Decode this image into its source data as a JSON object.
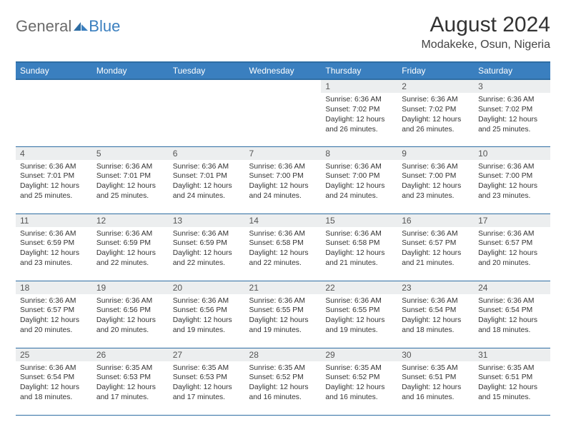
{
  "logo": {
    "text1": "General",
    "text2": "Blue"
  },
  "title": "August 2024",
  "location": "Modakeke, Osun, Nigeria",
  "colors": {
    "header_bg": "#3a7fbf",
    "header_border": "#2e6da3",
    "daynum_bg": "#eceeef",
    "logo_gray": "#6b6b6b",
    "logo_blue": "#3a7fbf"
  },
  "weekdays": [
    "Sunday",
    "Monday",
    "Tuesday",
    "Wednesday",
    "Thursday",
    "Friday",
    "Saturday"
  ],
  "weeks": [
    [
      {
        "day": "",
        "sunrise": "",
        "sunset": "",
        "daylight": ""
      },
      {
        "day": "",
        "sunrise": "",
        "sunset": "",
        "daylight": ""
      },
      {
        "day": "",
        "sunrise": "",
        "sunset": "",
        "daylight": ""
      },
      {
        "day": "",
        "sunrise": "",
        "sunset": "",
        "daylight": ""
      },
      {
        "day": "1",
        "sunrise": "Sunrise: 6:36 AM",
        "sunset": "Sunset: 7:02 PM",
        "daylight": "Daylight: 12 hours and 26 minutes."
      },
      {
        "day": "2",
        "sunrise": "Sunrise: 6:36 AM",
        "sunset": "Sunset: 7:02 PM",
        "daylight": "Daylight: 12 hours and 26 minutes."
      },
      {
        "day": "3",
        "sunrise": "Sunrise: 6:36 AM",
        "sunset": "Sunset: 7:02 PM",
        "daylight": "Daylight: 12 hours and 25 minutes."
      }
    ],
    [
      {
        "day": "4",
        "sunrise": "Sunrise: 6:36 AM",
        "sunset": "Sunset: 7:01 PM",
        "daylight": "Daylight: 12 hours and 25 minutes."
      },
      {
        "day": "5",
        "sunrise": "Sunrise: 6:36 AM",
        "sunset": "Sunset: 7:01 PM",
        "daylight": "Daylight: 12 hours and 25 minutes."
      },
      {
        "day": "6",
        "sunrise": "Sunrise: 6:36 AM",
        "sunset": "Sunset: 7:01 PM",
        "daylight": "Daylight: 12 hours and 24 minutes."
      },
      {
        "day": "7",
        "sunrise": "Sunrise: 6:36 AM",
        "sunset": "Sunset: 7:00 PM",
        "daylight": "Daylight: 12 hours and 24 minutes."
      },
      {
        "day": "8",
        "sunrise": "Sunrise: 6:36 AM",
        "sunset": "Sunset: 7:00 PM",
        "daylight": "Daylight: 12 hours and 24 minutes."
      },
      {
        "day": "9",
        "sunrise": "Sunrise: 6:36 AM",
        "sunset": "Sunset: 7:00 PM",
        "daylight": "Daylight: 12 hours and 23 minutes."
      },
      {
        "day": "10",
        "sunrise": "Sunrise: 6:36 AM",
        "sunset": "Sunset: 7:00 PM",
        "daylight": "Daylight: 12 hours and 23 minutes."
      }
    ],
    [
      {
        "day": "11",
        "sunrise": "Sunrise: 6:36 AM",
        "sunset": "Sunset: 6:59 PM",
        "daylight": "Daylight: 12 hours and 23 minutes."
      },
      {
        "day": "12",
        "sunrise": "Sunrise: 6:36 AM",
        "sunset": "Sunset: 6:59 PM",
        "daylight": "Daylight: 12 hours and 22 minutes."
      },
      {
        "day": "13",
        "sunrise": "Sunrise: 6:36 AM",
        "sunset": "Sunset: 6:59 PM",
        "daylight": "Daylight: 12 hours and 22 minutes."
      },
      {
        "day": "14",
        "sunrise": "Sunrise: 6:36 AM",
        "sunset": "Sunset: 6:58 PM",
        "daylight": "Daylight: 12 hours and 22 minutes."
      },
      {
        "day": "15",
        "sunrise": "Sunrise: 6:36 AM",
        "sunset": "Sunset: 6:58 PM",
        "daylight": "Daylight: 12 hours and 21 minutes."
      },
      {
        "day": "16",
        "sunrise": "Sunrise: 6:36 AM",
        "sunset": "Sunset: 6:57 PM",
        "daylight": "Daylight: 12 hours and 21 minutes."
      },
      {
        "day": "17",
        "sunrise": "Sunrise: 6:36 AM",
        "sunset": "Sunset: 6:57 PM",
        "daylight": "Daylight: 12 hours and 20 minutes."
      }
    ],
    [
      {
        "day": "18",
        "sunrise": "Sunrise: 6:36 AM",
        "sunset": "Sunset: 6:57 PM",
        "daylight": "Daylight: 12 hours and 20 minutes."
      },
      {
        "day": "19",
        "sunrise": "Sunrise: 6:36 AM",
        "sunset": "Sunset: 6:56 PM",
        "daylight": "Daylight: 12 hours and 20 minutes."
      },
      {
        "day": "20",
        "sunrise": "Sunrise: 6:36 AM",
        "sunset": "Sunset: 6:56 PM",
        "daylight": "Daylight: 12 hours and 19 minutes."
      },
      {
        "day": "21",
        "sunrise": "Sunrise: 6:36 AM",
        "sunset": "Sunset: 6:55 PM",
        "daylight": "Daylight: 12 hours and 19 minutes."
      },
      {
        "day": "22",
        "sunrise": "Sunrise: 6:36 AM",
        "sunset": "Sunset: 6:55 PM",
        "daylight": "Daylight: 12 hours and 19 minutes."
      },
      {
        "day": "23",
        "sunrise": "Sunrise: 6:36 AM",
        "sunset": "Sunset: 6:54 PM",
        "daylight": "Daylight: 12 hours and 18 minutes."
      },
      {
        "day": "24",
        "sunrise": "Sunrise: 6:36 AM",
        "sunset": "Sunset: 6:54 PM",
        "daylight": "Daylight: 12 hours and 18 minutes."
      }
    ],
    [
      {
        "day": "25",
        "sunrise": "Sunrise: 6:36 AM",
        "sunset": "Sunset: 6:54 PM",
        "daylight": "Daylight: 12 hours and 18 minutes."
      },
      {
        "day": "26",
        "sunrise": "Sunrise: 6:35 AM",
        "sunset": "Sunset: 6:53 PM",
        "daylight": "Daylight: 12 hours and 17 minutes."
      },
      {
        "day": "27",
        "sunrise": "Sunrise: 6:35 AM",
        "sunset": "Sunset: 6:53 PM",
        "daylight": "Daylight: 12 hours and 17 minutes."
      },
      {
        "day": "28",
        "sunrise": "Sunrise: 6:35 AM",
        "sunset": "Sunset: 6:52 PM",
        "daylight": "Daylight: 12 hours and 16 minutes."
      },
      {
        "day": "29",
        "sunrise": "Sunrise: 6:35 AM",
        "sunset": "Sunset: 6:52 PM",
        "daylight": "Daylight: 12 hours and 16 minutes."
      },
      {
        "day": "30",
        "sunrise": "Sunrise: 6:35 AM",
        "sunset": "Sunset: 6:51 PM",
        "daylight": "Daylight: 12 hours and 16 minutes."
      },
      {
        "day": "31",
        "sunrise": "Sunrise: 6:35 AM",
        "sunset": "Sunset: 6:51 PM",
        "daylight": "Daylight: 12 hours and 15 minutes."
      }
    ]
  ]
}
